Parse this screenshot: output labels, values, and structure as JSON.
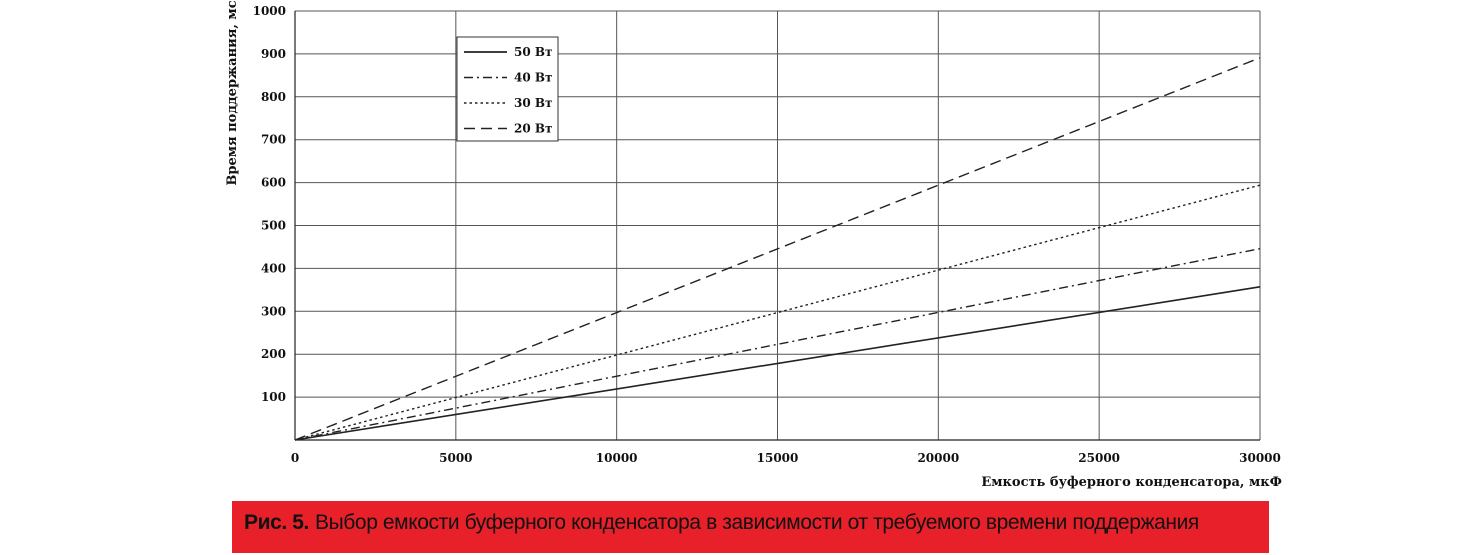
{
  "chart_data": {
    "type": "line",
    "title": "",
    "xlabel": "Емкость буферного конденсатора, мкФ",
    "ylabel": "Время поддержания, мс",
    "xlim": [
      0,
      30000
    ],
    "ylim": [
      0,
      1000
    ],
    "x_ticks": [
      0,
      5000,
      10000,
      15000,
      20000,
      25000,
      30000
    ],
    "y_ticks": [
      100,
      200,
      300,
      400,
      500,
      600,
      700,
      800,
      900,
      1000
    ],
    "grid": true,
    "legend_position": "top-left",
    "series": [
      {
        "name": "50 Вт",
        "style": "solid",
        "x": [
          0,
          30000
        ],
        "y": [
          0,
          357
        ]
      },
      {
        "name": "40 Вт",
        "style": "dash-dot",
        "x": [
          0,
          30000
        ],
        "y": [
          0,
          446
        ]
      },
      {
        "name": "30 Вт",
        "style": "dotted",
        "x": [
          0,
          30000
        ],
        "y": [
          0,
          594
        ]
      },
      {
        "name": "20 Вт",
        "style": "dashed",
        "x": [
          0,
          30000
        ],
        "y": [
          0,
          891
        ]
      }
    ]
  },
  "caption": {
    "label": "Рис. 5.",
    "text": "Выбор емкости буферного конденсатора в зависимости от требуемого времени поддержания",
    "background": "#e8202a"
  }
}
